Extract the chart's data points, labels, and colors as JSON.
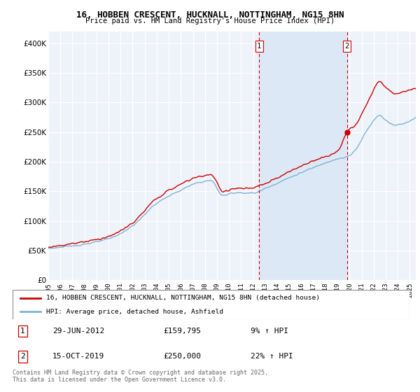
{
  "title": "16, HOBBEN CRESCENT, HUCKNALL, NOTTINGHAM, NG15 8HN",
  "subtitle": "Price paid vs. HM Land Registry's House Price Index (HPI)",
  "legend_line1": "16, HOBBEN CRESCENT, HUCKNALL, NOTTINGHAM, NG15 8HN (detached house)",
  "legend_line2": "HPI: Average price, detached house, Ashfield",
  "annotation1_label": "1",
  "annotation1_date": "29-JUN-2012",
  "annotation1_price": "£159,795",
  "annotation1_hpi": "9% ↑ HPI",
  "annotation2_label": "2",
  "annotation2_date": "15-OCT-2019",
  "annotation2_price": "£250,000",
  "annotation2_hpi": "22% ↑ HPI",
  "footer": "Contains HM Land Registry data © Crown copyright and database right 2025.\nThis data is licensed under the Open Government Licence v3.0.",
  "red_color": "#cc0000",
  "blue_color": "#7fb3d3",
  "vline_color": "#cc0000",
  "span_color": "#dce8f5",
  "chart_bg": "#eef3fa",
  "ylim": [
    0,
    420000
  ],
  "yticks": [
    0,
    50000,
    100000,
    150000,
    200000,
    250000,
    300000,
    350000,
    400000
  ],
  "sale1_year": 2012.5,
  "sale1_price": 159795,
  "sale2_year": 2019.79,
  "sale2_price": 250000,
  "xstart": 1995,
  "xend": 2025.5
}
